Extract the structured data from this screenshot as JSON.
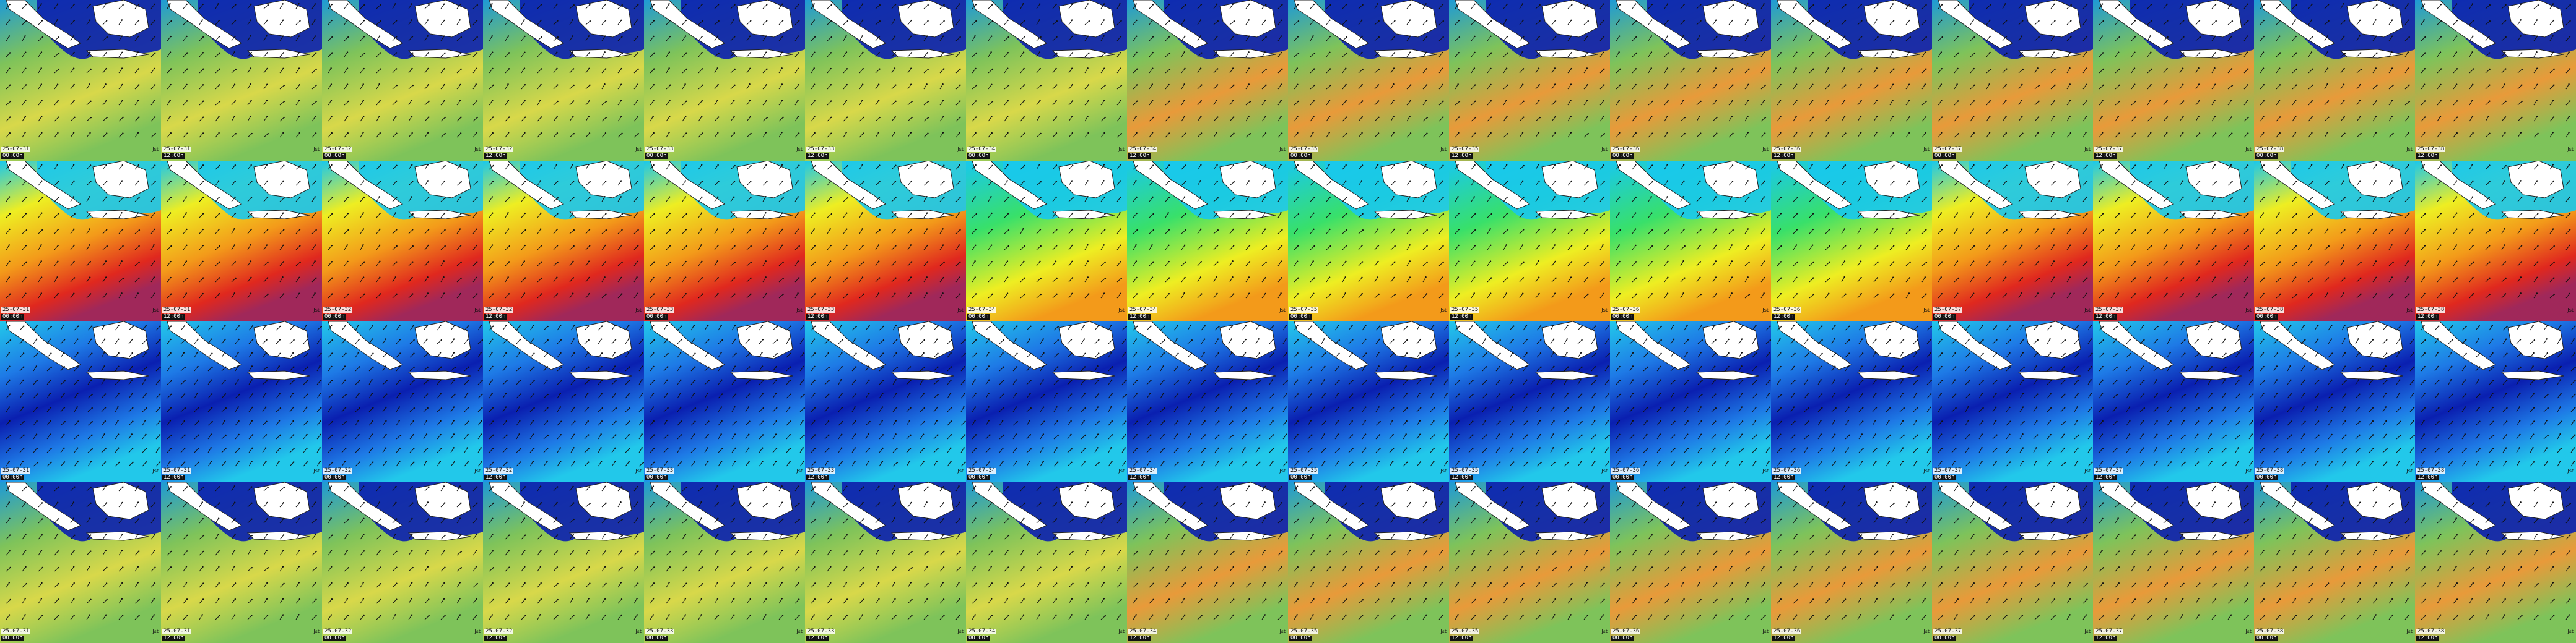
{
  "grid": {
    "rows": 4,
    "cols": 16,
    "row_layers": [
      "wave-height",
      "wave-period",
      "wind-speed",
      "wave-height"
    ]
  },
  "dates": [
    "25-07-31",
    "25-07-31",
    "25-07-32",
    "25-07-32",
    "25-07-33",
    "25-07-33",
    "25-07-34",
    "25-07-34",
    "25-07-35",
    "25-07-35",
    "25-07-36",
    "25-07-36",
    "25-07-37",
    "25-07-37",
    "25-07-38",
    "25-07-38"
  ],
  "times": [
    "00:00h",
    "12:00h",
    "00:00h",
    "12:00h",
    "00:00h",
    "12:00h",
    "00:00h",
    "12:00h",
    "00:00h",
    "12:00h",
    "00:00h",
    "12:00h",
    "00:00h",
    "12:00h",
    "00:00h",
    "12:00h"
  ],
  "logo_text": "Jst",
  "colors": {
    "land": "#ffffff",
    "coast": "#222222",
    "wave_low": "#0a1fb0",
    "wave_mid": "#1e9ad6",
    "wave_green": "#7ec35a",
    "wave_yellow": "#d8d84a",
    "wave_orange": "#e89a3a",
    "period_cyan": "#18c8ee",
    "period_green": "#38e06a",
    "period_yellow": "#eeee22",
    "period_orange": "#f39a1a",
    "period_red": "#e0281e",
    "period_purple": "#a0285a",
    "wind_blue": "#0a1fb0",
    "wind_mid": "#1e7ae6",
    "wind_cyan": "#22c8ea"
  }
}
